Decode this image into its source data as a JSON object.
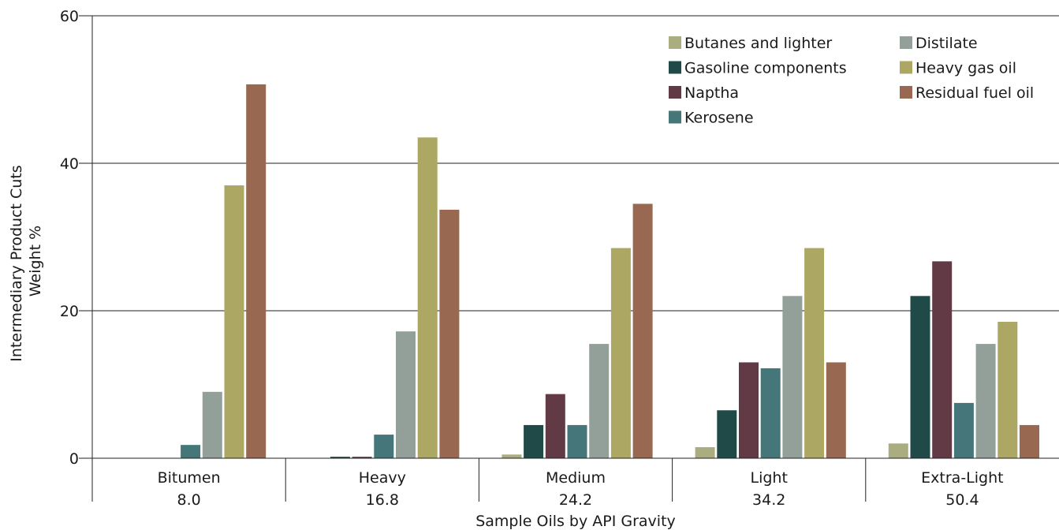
{
  "chart_data": {
    "type": "bar",
    "categories": [
      "Bitumen",
      "Heavy",
      "Medium",
      "Light",
      "Extra-Light"
    ],
    "category_sublabels": [
      "8.0",
      "16.8",
      "24.2",
      "34.2",
      "50.4"
    ],
    "xlabel": "Sample Oils by API Gravity",
    "ylabel": [
      "Intermediary Product Cuts",
      "Weight %"
    ],
    "ylim": [
      0,
      60
    ],
    "yticks": [
      0,
      20,
      40,
      60
    ],
    "grid": "horizontal",
    "legend_position": "top-right",
    "series": [
      {
        "name": "Butanes and lighter",
        "color": "#a9ad7f",
        "values": [
          0,
          0,
          0.5,
          1.5,
          2
        ]
      },
      {
        "name": "Gasoline components",
        "color": "#1f4a48",
        "values": [
          0,
          0.2,
          4.5,
          6.5,
          22
        ]
      },
      {
        "name": "Naptha",
        "color": "#623a46",
        "values": [
          0,
          0.2,
          8.7,
          13,
          26.7
        ]
      },
      {
        "name": "Kerosene",
        "color": "#457679",
        "values": [
          1.8,
          3.2,
          4.5,
          12.2,
          7.5
        ]
      },
      {
        "name": "Distilate",
        "color": "#93a09a",
        "values": [
          9,
          17.2,
          15.5,
          22,
          15.5
        ]
      },
      {
        "name": "Heavy gas oil",
        "color": "#aca763",
        "values": [
          37,
          43.5,
          28.5,
          28.5,
          18.5
        ]
      },
      {
        "name": "Residual fuel oil",
        "color": "#996850",
        "values": [
          50.7,
          33.7,
          34.5,
          13,
          4.5
        ]
      }
    ]
  }
}
